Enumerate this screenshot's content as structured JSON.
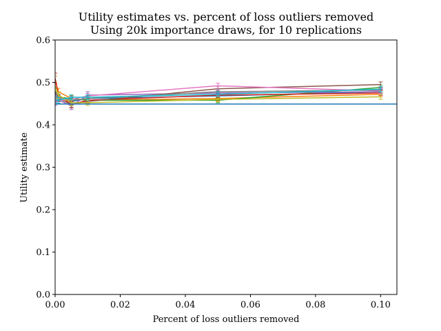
{
  "chart_data": {
    "type": "line",
    "title": "Utility estimates vs. percent of loss outliers removed",
    "subtitle": "Using 20k importance draws, for 10 replications",
    "xlabel": "Percent of loss outliers removed",
    "ylabel": "Utility estimate",
    "xlim": [
      0.0,
      0.105
    ],
    "ylim": [
      0.0,
      0.6
    ],
    "x_ticks": [
      "0.00",
      "0.02",
      "0.04",
      "0.06",
      "0.08",
      "0.10"
    ],
    "y_ticks": [
      "0.0",
      "0.1",
      "0.2",
      "0.3",
      "0.4",
      "0.5",
      "0.6"
    ],
    "grid": false,
    "x": [
      0.0,
      0.001,
      0.005,
      0.01,
      0.05,
      0.1
    ],
    "series": [
      {
        "color": "#1f77b4",
        "values": [
          0.475,
          0.462,
          0.455,
          0.462,
          0.468,
          0.478
        ],
        "errors": [
          0.008,
          0.007,
          0.007,
          0.006,
          0.006,
          0.006
        ]
      },
      {
        "color": "#ff7f0e",
        "values": [
          0.505,
          0.478,
          0.462,
          0.458,
          0.462,
          0.472
        ],
        "errors": [
          0.01,
          0.008,
          0.007,
          0.006,
          0.006,
          0.006
        ]
      },
      {
        "color": "#2ca02c",
        "values": [
          0.47,
          0.465,
          0.462,
          0.458,
          0.458,
          0.488
        ],
        "errors": [
          0.008,
          0.007,
          0.006,
          0.006,
          0.006,
          0.006
        ]
      },
      {
        "color": "#d62728",
        "values": [
          0.51,
          0.47,
          0.448,
          0.458,
          0.47,
          0.475
        ],
        "errors": [
          0.012,
          0.008,
          0.008,
          0.007,
          0.006,
          0.006
        ]
      },
      {
        "color": "#9467bd",
        "values": [
          0.455,
          0.458,
          0.445,
          0.47,
          0.475,
          0.478
        ],
        "errors": [
          0.009,
          0.008,
          0.009,
          0.008,
          0.006,
          0.006
        ]
      },
      {
        "color": "#8c564b",
        "values": [
          0.48,
          0.462,
          0.448,
          0.455,
          0.485,
          0.495
        ],
        "errors": [
          0.008,
          0.007,
          0.007,
          0.006,
          0.006,
          0.006
        ]
      },
      {
        "color": "#e377c2",
        "values": [
          0.462,
          0.458,
          0.46,
          0.468,
          0.492,
          0.48
        ],
        "errors": [
          0.008,
          0.007,
          0.007,
          0.006,
          0.006,
          0.006
        ]
      },
      {
        "color": "#7f7f7f",
        "values": [
          0.468,
          0.465,
          0.458,
          0.462,
          0.478,
          0.482
        ],
        "errors": [
          0.008,
          0.007,
          0.006,
          0.006,
          0.006,
          0.006
        ]
      },
      {
        "color": "#bcbd22",
        "values": [
          0.492,
          0.47,
          0.452,
          0.452,
          0.46,
          0.466
        ],
        "errors": [
          0.009,
          0.008,
          0.007,
          0.006,
          0.006,
          0.006
        ]
      },
      {
        "color": "#17becf",
        "values": [
          0.46,
          0.458,
          0.465,
          0.465,
          0.472,
          0.484
        ],
        "errors": [
          0.008,
          0.007,
          0.006,
          0.006,
          0.006,
          0.006
        ]
      }
    ],
    "reference_line": {
      "color": "#1f77b4",
      "value": 0.449
    }
  }
}
